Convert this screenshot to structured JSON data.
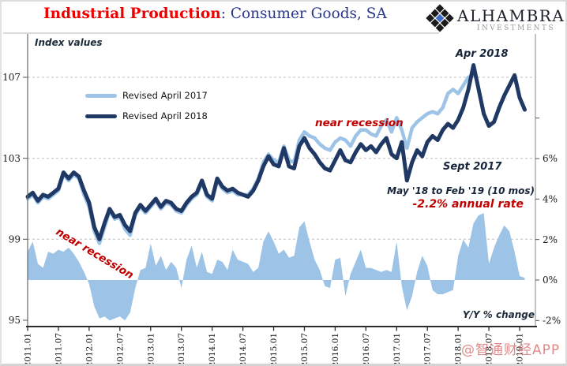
{
  "header": {
    "title_main": "Industrial Production",
    "title_sub": ": Consumer Goods, SA",
    "brand_name": "ALHAMBRA",
    "brand_sub": "INVESTMENTS"
  },
  "watermark": "@智通财经APP",
  "colors": {
    "title_red": "#ee0000",
    "title_blue": "#2a3890",
    "annotation_red": "#c00000",
    "annotation_dark": "#16243a",
    "light_blue": "#9dc3e6",
    "navy": "#1f3864",
    "watermark_pink": "rgba(219,106,106,0.8)"
  },
  "chart_data": {
    "type": "line+area",
    "title": "Industrial Production: Consumer Goods, SA",
    "x_start": "2011.01",
    "x_frequency": "monthly",
    "x_tick_labels": [
      "2011.01",
      "2011.07",
      "2012.01",
      "2012.07",
      "2013.01",
      "2013.07",
      "2014.01",
      "2014.07",
      "2015.01",
      "2015.07",
      "2016.01",
      "2016.07",
      "2017.01",
      "2017.07",
      "2018.01",
      "2018.07",
      "2019.01"
    ],
    "left_axis": {
      "title": "Index values",
      "ticks": [
        95,
        99,
        103,
        107
      ],
      "range": [
        94.7,
        109.1
      ]
    },
    "right_axis": {
      "title": "Y/Y % change",
      "tick_labels": [
        "-2%",
        "0%",
        "2%",
        "4%",
        "6%"
      ],
      "ticks_pct": [
        -2,
        0,
        2,
        4,
        6
      ],
      "extra_tick_pct": 8,
      "range": [
        -2.3,
        12.1
      ]
    },
    "gridlines_at_index": [
      99,
      103,
      107
    ],
    "legend_position": "upper-left",
    "series": [
      {
        "name": "Revised April 2017",
        "type": "line",
        "color": "#9dc3e6",
        "axis": "left",
        "values": [
          101.0,
          101.2,
          100.8,
          101.1,
          101.0,
          101.2,
          101.4,
          102.2,
          101.9,
          102.2,
          102.0,
          101.2,
          100.6,
          99.4,
          98.8,
          99.6,
          100.4,
          100.0,
          100.1,
          99.5,
          99.2,
          100.2,
          100.6,
          100.3,
          100.6,
          100.9,
          100.5,
          100.8,
          100.7,
          100.4,
          100.3,
          100.7,
          101.0,
          101.2,
          101.8,
          101.1,
          100.9,
          101.9,
          101.5,
          101.3,
          101.4,
          101.2,
          101.2,
          101.2,
          101.5,
          102.0,
          102.8,
          103.2,
          102.9,
          102.8,
          103.6,
          102.9,
          102.8,
          103.9,
          104.3,
          104.1,
          104.0,
          103.7,
          103.5,
          103.4,
          103.8,
          104.0,
          103.9,
          103.6,
          104.1,
          104.4,
          104.4,
          104.2,
          104.1,
          104.6,
          104.9,
          104.3,
          105.0,
          104.4,
          103.5,
          104.5,
          104.8,
          105.0,
          105.2,
          105.3,
          105.2,
          105.5,
          106.2,
          106.4,
          106.2,
          106.6,
          107.0,
          107.1
        ]
      },
      {
        "name": "Revised April 2018",
        "type": "line",
        "color": "#1f3864",
        "axis": "left",
        "values": [
          101.1,
          101.3,
          100.9,
          101.2,
          101.1,
          101.3,
          101.5,
          102.3,
          102.0,
          102.3,
          102.1,
          101.4,
          100.8,
          99.6,
          99.0,
          99.8,
          100.5,
          100.1,
          100.2,
          99.7,
          99.4,
          100.3,
          100.7,
          100.4,
          100.7,
          101.0,
          100.6,
          100.9,
          100.8,
          100.5,
          100.4,
          100.8,
          101.1,
          101.3,
          101.9,
          101.2,
          101.0,
          102.0,
          101.6,
          101.4,
          101.5,
          101.3,
          101.2,
          101.1,
          101.4,
          101.9,
          102.6,
          103.1,
          102.7,
          102.6,
          103.5,
          102.6,
          102.5,
          103.6,
          104.0,
          103.5,
          103.2,
          102.8,
          102.5,
          102.4,
          102.9,
          103.4,
          102.9,
          102.8,
          103.3,
          103.7,
          103.4,
          103.6,
          103.3,
          103.7,
          104.0,
          103.2,
          103.0,
          103.8,
          101.9,
          102.8,
          103.4,
          103.1,
          103.8,
          104.1,
          103.9,
          104.4,
          104.7,
          104.5,
          104.9,
          105.5,
          106.4,
          107.6,
          106.4,
          105.2,
          104.6,
          104.8,
          105.5,
          106.1,
          106.6,
          107.1,
          106.0,
          105.4
        ]
      },
      {
        "name": "Y/Y % change",
        "type": "area",
        "color": "#9dc3e6",
        "axis": "right",
        "values": [
          1.4,
          1.9,
          0.8,
          0.6,
          1.4,
          1.3,
          1.5,
          1.4,
          1.6,
          1.3,
          0.9,
          0.4,
          -0.2,
          -1.3,
          -1.9,
          -1.8,
          -2.0,
          -1.9,
          -1.8,
          -2.0,
          -1.6,
          -0.4,
          0.5,
          0.6,
          1.8,
          0.7,
          1.2,
          0.5,
          0.9,
          0.6,
          -0.4,
          1.0,
          1.7,
          0.6,
          1.4,
          0.4,
          0.3,
          1.0,
          0.9,
          0.5,
          1.5,
          1.0,
          0.9,
          0.8,
          0.4,
          0.6,
          1.9,
          2.4,
          1.9,
          1.3,
          1.5,
          1.1,
          1.2,
          2.6,
          2.9,
          1.9,
          1.0,
          0.5,
          -0.3,
          -0.4,
          1.0,
          1.1,
          -0.8,
          0.3,
          0.9,
          1.5,
          0.6,
          0.6,
          0.5,
          0.4,
          0.5,
          0.4,
          1.9,
          -0.3,
          -1.5,
          -0.8,
          0.4,
          1.2,
          0.7,
          -0.5,
          -0.7,
          -0.7,
          -0.6,
          -0.5,
          1.2,
          2.0,
          1.6,
          2.8,
          3.2,
          3.3,
          0.8,
          1.6,
          2.2,
          2.7,
          2.4,
          1.4,
          0.2,
          0.1
        ]
      }
    ],
    "annotations": {
      "apr_2018": "Apr 2018",
      "near_recession_upper": "near recession",
      "near_recession_lower": "near recession",
      "sept_2017": "Sept 2017",
      "decline_period": "May '18 to Feb '19 (10 mos)",
      "decline_rate": "-2.2% annual rate"
    }
  }
}
